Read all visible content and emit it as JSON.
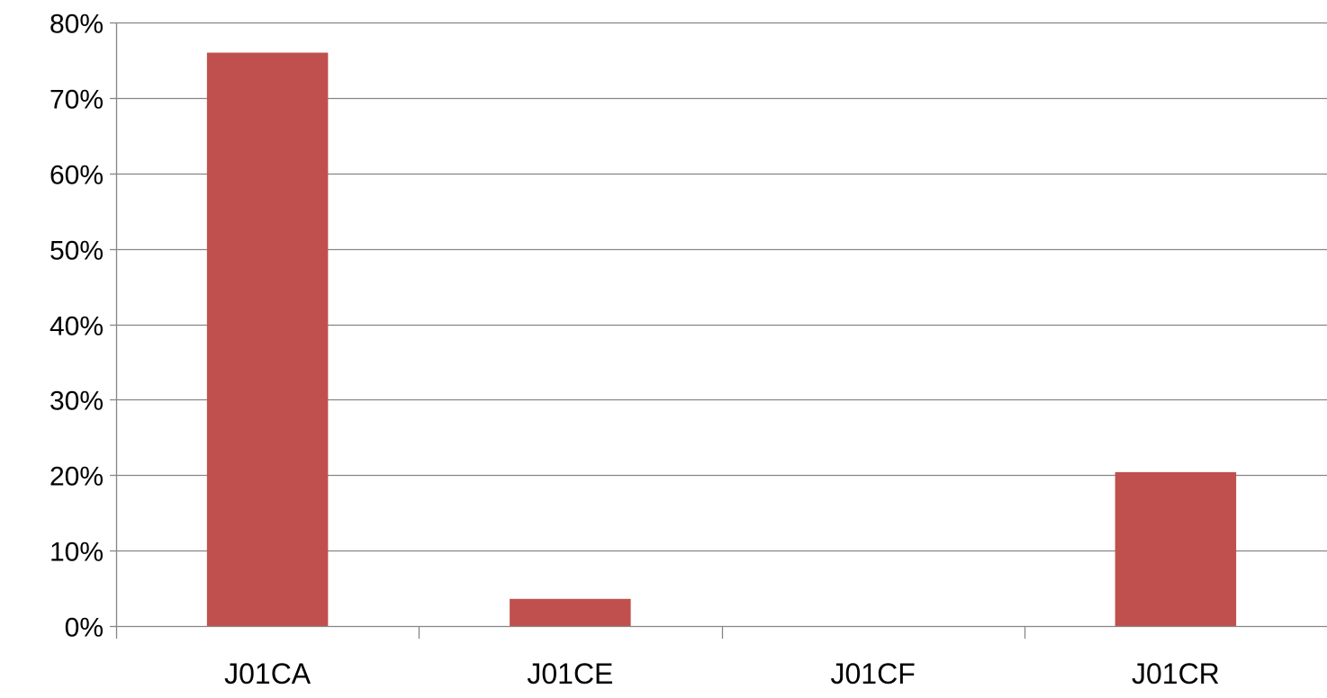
{
  "chart_data": {
    "type": "bar",
    "categories": [
      "J01CA",
      "J01CE",
      "J01CF",
      "J01CR"
    ],
    "series": [
      {
        "values": [
          76.0,
          3.6,
          0.0,
          20.4
        ],
        "color": "#c0504d"
      }
    ],
    "ylim": [
      0,
      80
    ],
    "yticks": [
      0,
      10,
      20,
      30,
      40,
      50,
      60,
      70,
      80
    ],
    "ytick_labels": [
      "0%",
      "10%",
      "20%",
      "30%",
      "40%",
      "50%",
      "60%",
      "70%",
      "80%"
    ],
    "y_unit": "%",
    "grid": true,
    "gridline_color": "#868686",
    "axis_color": "#868686",
    "legend": "none",
    "title": "",
    "xlabel": "",
    "ylabel": ""
  }
}
